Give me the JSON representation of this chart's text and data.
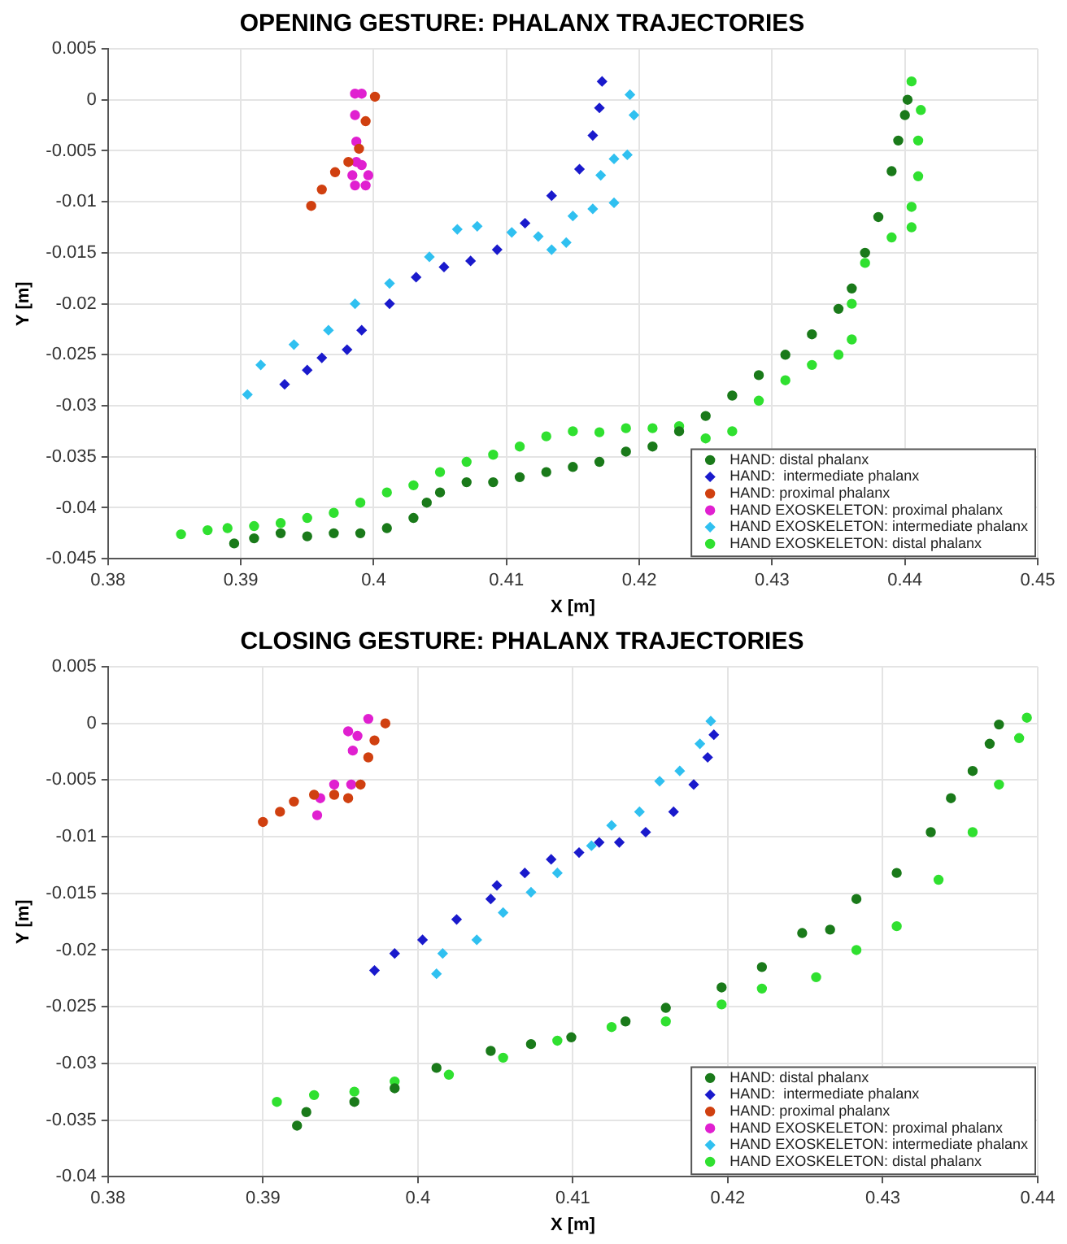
{
  "chart_data": [
    {
      "type": "scatter",
      "title": "OPENING GESTURE: PHALANX TRAJECTORIES",
      "xlabel": "X [m]",
      "ylabel": "Y [m]",
      "xlim": [
        0.38,
        0.45
      ],
      "xticks": [
        0.38,
        0.39,
        0.4,
        0.41,
        0.42,
        0.43,
        0.44,
        0.45
      ],
      "ylim": [
        -0.045,
        0.005
      ],
      "yticks": [
        -0.045,
        -0.04,
        -0.035,
        -0.03,
        -0.025,
        -0.02,
        -0.015,
        -0.01,
        -0.005,
        0,
        0.005
      ],
      "grid": true,
      "legend": "bottom right",
      "series": [
        {
          "name": "HAND: distal phalanx",
          "color": "#1a7a1a",
          "marker": "circle",
          "x": [
            0.3895,
            0.391,
            0.393,
            0.395,
            0.397,
            0.399,
            0.401,
            0.403,
            0.404,
            0.405,
            0.407,
            0.409,
            0.411,
            0.413,
            0.415,
            0.417,
            0.419,
            0.421,
            0.423,
            0.425,
            0.427,
            0.429,
            0.431,
            0.433,
            0.435,
            0.436,
            0.437,
            0.438,
            0.439,
            0.4395,
            0.44,
            0.4402
          ],
          "values": [
            -0.0435,
            -0.043,
            -0.0425,
            -0.0428,
            -0.0425,
            -0.0425,
            -0.042,
            -0.041,
            -0.0395,
            -0.0385,
            -0.0375,
            -0.0375,
            -0.037,
            -0.0365,
            -0.036,
            -0.0355,
            -0.0345,
            -0.034,
            -0.0325,
            -0.031,
            -0.029,
            -0.027,
            -0.025,
            -0.023,
            -0.0205,
            -0.0185,
            -0.015,
            -0.0115,
            -0.007,
            -0.004,
            -0.0015,
            0
          ]
        },
        {
          "name": "HAND:  intermediate phalanx",
          "color": "#1a1acc",
          "marker": "diamond",
          "x": [
            0.3933,
            0.395,
            0.3961,
            0.398,
            0.3991,
            0.4012,
            0.4032,
            0.4053,
            0.4073,
            0.4093,
            0.4114,
            0.4134,
            0.4155,
            0.4165,
            0.417,
            0.4172
          ],
          "values": [
            -0.0279,
            -0.0265,
            -0.0253,
            -0.0245,
            -0.0226,
            -0.02,
            -0.0174,
            -0.0164,
            -0.0158,
            -0.0147,
            -0.0121,
            -0.0094,
            -0.0068,
            -0.0035,
            -0.0008,
            0.0018
          ]
        },
        {
          "name": "HAND: proximal phalanx",
          "color": "#d04010",
          "marker": "circle",
          "x": [
            0.3953,
            0.3961,
            0.3971,
            0.3981,
            0.3989,
            0.3994,
            0.4001
          ],
          "values": [
            -0.0104,
            -0.0088,
            -0.0071,
            -0.0061,
            -0.0048,
            -0.0021,
            0.0003
          ]
        },
        {
          "name": "HAND EXOSKELETON: proximal phalanx",
          "color": "#e020d0",
          "marker": "circle",
          "x": [
            0.3986,
            0.3991,
            0.3986,
            0.3987,
            0.3987,
            0.3984,
            0.3986,
            0.3994,
            0.3996,
            0.3991
          ],
          "values": [
            0.0006,
            0.0006,
            -0.0015,
            -0.0041,
            -0.0061,
            -0.0074,
            -0.0084,
            -0.0084,
            -0.0074,
            -0.0064
          ]
        },
        {
          "name": "HAND EXOSKELETON: intermediate phalanx",
          "color": "#30c0f0",
          "marker": "diamond",
          "x": [
            0.3905,
            0.3915,
            0.394,
            0.3966,
            0.3986,
            0.4012,
            0.4042,
            0.4063,
            0.4078,
            0.4104,
            0.4124,
            0.4134,
            0.4145,
            0.415,
            0.4165,
            0.4181,
            0.4171,
            0.4181,
            0.4191,
            0.4196,
            0.4193
          ],
          "values": [
            -0.0289,
            -0.026,
            -0.024,
            -0.0226,
            -0.02,
            -0.018,
            -0.0154,
            -0.0127,
            -0.0124,
            -0.013,
            -0.0134,
            -0.0147,
            -0.014,
            -0.0114,
            -0.0107,
            -0.0101,
            -0.0074,
            -0.0058,
            -0.0054,
            -0.0015,
            0.0005
          ]
        },
        {
          "name": "HAND EXOSKELETON: distal phalanx",
          "color": "#30e030",
          "marker": "circle",
          "x": [
            0.3855,
            0.3875,
            0.389,
            0.391,
            0.393,
            0.395,
            0.397,
            0.399,
            0.401,
            0.403,
            0.405,
            0.407,
            0.409,
            0.411,
            0.413,
            0.415,
            0.417,
            0.419,
            0.421,
            0.423,
            0.425,
            0.427,
            0.429,
            0.431,
            0.433,
            0.435,
            0.436,
            0.436,
            0.437,
            0.439,
            0.4405,
            0.4405,
            0.441,
            0.441,
            0.4412,
            0.4405
          ],
          "values": [
            -0.0426,
            -0.0422,
            -0.042,
            -0.0418,
            -0.0415,
            -0.041,
            -0.0405,
            -0.0395,
            -0.0385,
            -0.0378,
            -0.0365,
            -0.0355,
            -0.0348,
            -0.034,
            -0.033,
            -0.0325,
            -0.0326,
            -0.0322,
            -0.0322,
            -0.032,
            -0.0332,
            -0.0325,
            -0.0295,
            -0.0275,
            -0.026,
            -0.025,
            -0.0235,
            -0.02,
            -0.016,
            -0.0135,
            -0.0125,
            -0.0105,
            -0.0075,
            -0.004,
            -0.001,
            0.0018
          ]
        }
      ]
    },
    {
      "type": "scatter",
      "title": "CLOSING GESTURE: PHALANX TRAJECTORIES",
      "xlabel": "X [m]",
      "ylabel": "Y [m]",
      "xlim": [
        0.38,
        0.44
      ],
      "xticks": [
        0.38,
        0.39,
        0.4,
        0.41,
        0.42,
        0.43,
        0.44
      ],
      "ylim": [
        -0.04,
        0.005
      ],
      "yticks": [
        -0.04,
        -0.035,
        -0.03,
        -0.025,
        -0.02,
        -0.015,
        -0.01,
        -0.005,
        0,
        0.005
      ],
      "grid": true,
      "legend": "bottom right",
      "series": [
        {
          "name": "HAND: distal phalanx",
          "color": "#1a7a1a",
          "marker": "circle",
          "x": [
            0.3922,
            0.3928,
            0.3959,
            0.3985,
            0.4012,
            0.4047,
            0.4073,
            0.4099,
            0.4134,
            0.416,
            0.4196,
            0.4222,
            0.4248,
            0.4266,
            0.4283,
            0.4309,
            0.4331,
            0.4344,
            0.4358,
            0.4369,
            0.4375
          ],
          "values": [
            -0.0355,
            -0.0343,
            -0.0334,
            -0.0322,
            -0.0304,
            -0.0289,
            -0.0283,
            -0.0277,
            -0.0263,
            -0.0251,
            -0.0233,
            -0.0215,
            -0.0185,
            -0.0182,
            -0.0155,
            -0.0132,
            -0.0096,
            -0.0066,
            -0.0042,
            -0.0018,
            -0.0001
          ]
        },
        {
          "name": "HAND:  intermediate phalanx",
          "color": "#1a1acc",
          "marker": "diamond",
          "x": [
            0.3972,
            0.3985,
            0.4003,
            0.4025,
            0.4047,
            0.4051,
            0.4069,
            0.4086,
            0.4104,
            0.4117,
            0.413,
            0.4147,
            0.4165,
            0.4178,
            0.4187,
            0.4191
          ],
          "values": [
            -0.0218,
            -0.0203,
            -0.0191,
            -0.0173,
            -0.0155,
            -0.0143,
            -0.0132,
            -0.012,
            -0.0114,
            -0.0105,
            -0.0105,
            -0.0096,
            -0.0078,
            -0.0054,
            -0.003,
            -0.001
          ]
        },
        {
          "name": "HAND: proximal phalanx",
          "color": "#d04010",
          "marker": "circle",
          "x": [
            0.39,
            0.3911,
            0.392,
            0.3933,
            0.3946,
            0.3955,
            0.3963,
            0.3968,
            0.3972,
            0.3979
          ],
          "values": [
            -0.0087,
            -0.0078,
            -0.0069,
            -0.0063,
            -0.0063,
            -0.0066,
            -0.0054,
            -0.003,
            -0.0015,
            0
          ]
        },
        {
          "name": "HAND EXOSKELETON: proximal phalanx",
          "color": "#e020d0",
          "marker": "circle",
          "x": [
            0.3935,
            0.3937,
            0.3946,
            0.3957,
            0.3958,
            0.3955,
            0.3961,
            0.3968
          ],
          "values": [
            -0.0081,
            -0.0066,
            -0.0054,
            -0.0054,
            -0.0024,
            -0.0007,
            -0.0011,
            0.0004
          ]
        },
        {
          "name": "HAND EXOSKELETON: intermediate phalanx",
          "color": "#30c0f0",
          "marker": "diamond",
          "x": [
            0.4012,
            0.4016,
            0.4038,
            0.4055,
            0.4073,
            0.409,
            0.4112,
            0.4125,
            0.4143,
            0.4156,
            0.4169,
            0.4182,
            0.4189
          ],
          "values": [
            -0.0221,
            -0.0203,
            -0.0191,
            -0.0167,
            -0.0149,
            -0.0132,
            -0.0108,
            -0.009,
            -0.0078,
            -0.0051,
            -0.0042,
            -0.0018,
            0.0002
          ]
        },
        {
          "name": "HAND EXOSKELETON: distal phalanx",
          "color": "#30e030",
          "marker": "circle",
          "x": [
            0.3909,
            0.3933,
            0.3959,
            0.3985,
            0.402,
            0.4055,
            0.409,
            0.4125,
            0.416,
            0.4196,
            0.4222,
            0.4257,
            0.4283,
            0.4309,
            0.4336,
            0.4358,
            0.4375,
            0.4388,
            0.4393
          ],
          "values": [
            -0.0334,
            -0.0328,
            -0.0325,
            -0.0316,
            -0.031,
            -0.0295,
            -0.028,
            -0.0268,
            -0.0263,
            -0.0248,
            -0.0234,
            -0.0224,
            -0.02,
            -0.0179,
            -0.0138,
            -0.0096,
            -0.0054,
            -0.0013,
            0.0005
          ]
        }
      ]
    }
  ]
}
